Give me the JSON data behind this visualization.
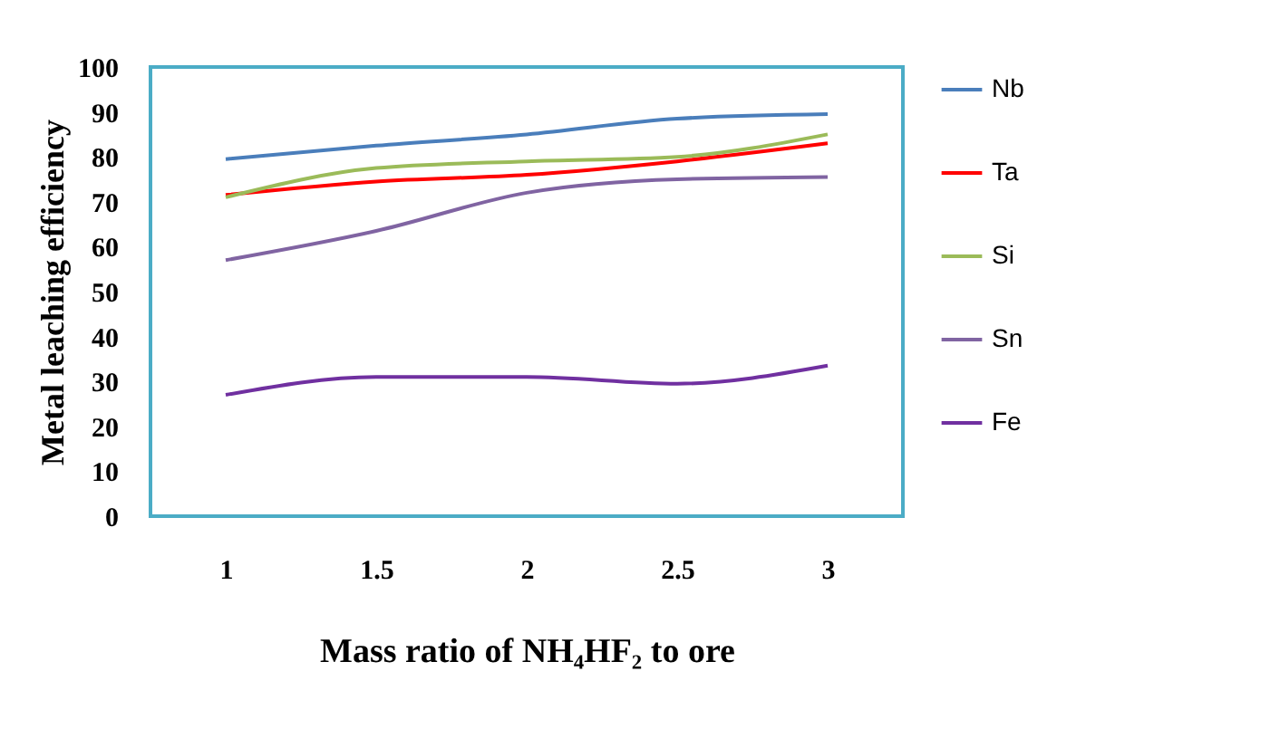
{
  "chart_data": {
    "type": "line",
    "xlabel": "Mass ratio of NH₄HF₂  to ore",
    "ylabel": "Metal leaching efficiency",
    "categories": [
      "1",
      "1.5",
      "2",
      "2.5",
      "3"
    ],
    "ylim": [
      0,
      100
    ],
    "yticks": [
      0,
      10,
      20,
      30,
      40,
      50,
      60,
      70,
      80,
      90,
      100
    ],
    "grid": false,
    "legend": "right",
    "marker": "none",
    "line_style": "solid",
    "series": [
      {
        "name": "Nb",
        "color": "#4a7ebb",
        "values": [
          79.5,
          82.5,
          85,
          88.5,
          89.5
        ]
      },
      {
        "name": "Ta",
        "color": "#ff0000",
        "values": [
          71.5,
          74.5,
          76,
          79,
          83
        ]
      },
      {
        "name": "Si",
        "color": "#9bbb59",
        "values": [
          71,
          77.5,
          79,
          80,
          85
        ]
      },
      {
        "name": "Sn",
        "color": "#8064a2",
        "values": [
          57,
          63.5,
          72,
          75,
          75.5
        ]
      },
      {
        "name": "Fe",
        "color": "#7030a0",
        "values": [
          27,
          31,
          31,
          29.5,
          33.5
        ]
      }
    ]
  }
}
